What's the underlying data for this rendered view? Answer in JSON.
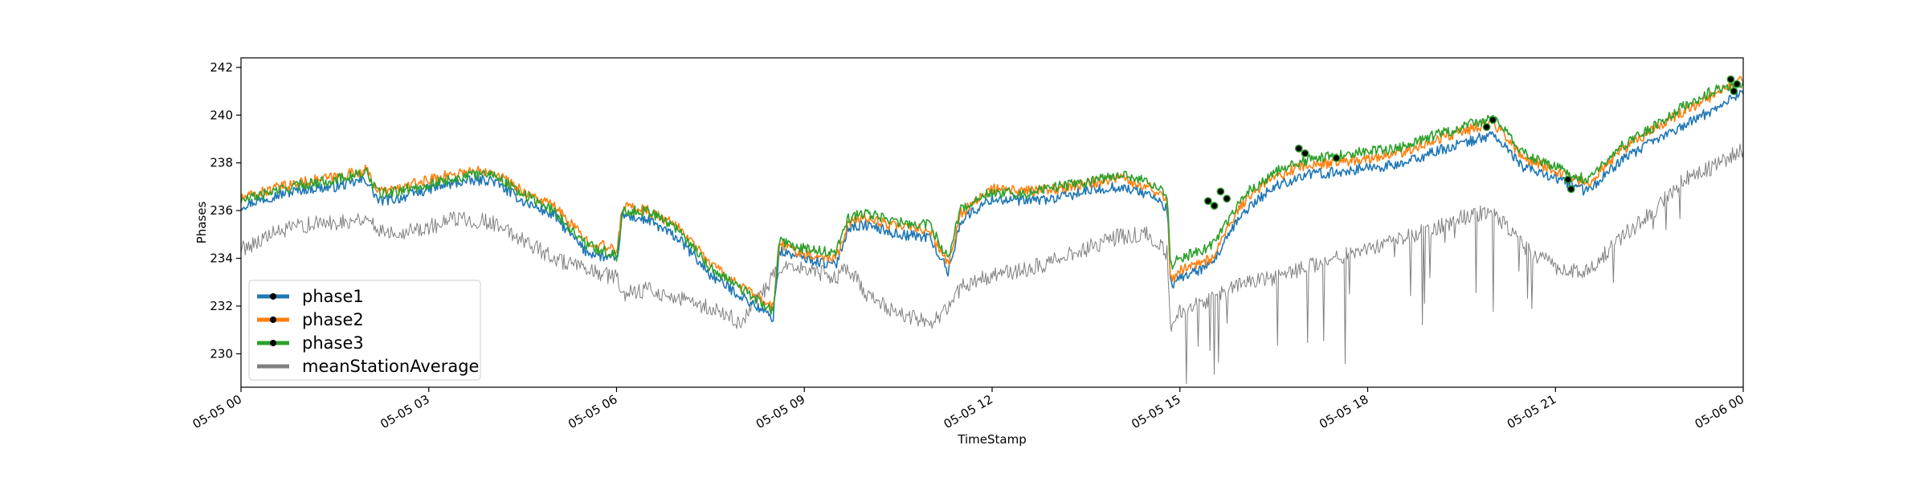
{
  "chart_data": {
    "type": "line",
    "title": "",
    "xlabel": "TimeStamp",
    "ylabel": "Phases",
    "xlim": [
      0,
      24
    ],
    "ylim": [
      228.6,
      242.4
    ],
    "x_ticks": [
      {
        "hour": 0,
        "label": "05-05 00"
      },
      {
        "hour": 3,
        "label": "05-05 03"
      },
      {
        "hour": 6,
        "label": "05-05 06"
      },
      {
        "hour": 9,
        "label": "05-05 09"
      },
      {
        "hour": 12,
        "label": "05-05 12"
      },
      {
        "hour": 15,
        "label": "05-05 15"
      },
      {
        "hour": 18,
        "label": "05-05 18"
      },
      {
        "hour": 21,
        "label": "05-05 21"
      },
      {
        "hour": 24,
        "label": "05-06 00"
      }
    ],
    "y_ticks": [
      {
        "value": 230,
        "label": "230"
      },
      {
        "value": 232,
        "label": "232"
      },
      {
        "value": 234,
        "label": "234"
      },
      {
        "value": 236,
        "label": "236"
      },
      {
        "value": 238,
        "label": "238"
      },
      {
        "value": 240,
        "label": "240"
      },
      {
        "value": 242,
        "label": "242"
      }
    ],
    "grid": false,
    "legend_position": "bottom-left",
    "x_unit": "hours since 05-05 00:00",
    "series": [
      {
        "name": "phase1",
        "color": "#1f77b4",
        "x": [
          0,
          0.5,
          1,
          1.5,
          2,
          2.2,
          2.5,
          3,
          3.5,
          4,
          4.5,
          5,
          5.5,
          6,
          6.1,
          6.5,
          7,
          7.5,
          8,
          8.5,
          8.6,
          9,
          9.5,
          9.7,
          10,
          10.5,
          11,
          11.3,
          11.5,
          12,
          12.5,
          13,
          13.5,
          14,
          14.5,
          14.8,
          14.85,
          15,
          15.5,
          16,
          16.5,
          17,
          17.5,
          18,
          18.5,
          19,
          19.5,
          20,
          20.5,
          21,
          21.5,
          22,
          22.5,
          23,
          23.5,
          24
        ],
        "y": [
          236.2,
          236.6,
          236.9,
          237.0,
          237.3,
          236.4,
          236.5,
          236.9,
          237.2,
          237.3,
          236.4,
          235.8,
          234.3,
          233.9,
          235.8,
          235.6,
          234.8,
          233.3,
          232.4,
          231.5,
          234.3,
          234.0,
          233.7,
          235.3,
          235.4,
          235.0,
          234.9,
          233.4,
          235.6,
          236.5,
          236.4,
          236.5,
          236.8,
          237.0,
          236.7,
          236.1,
          232.8,
          233.2,
          233.7,
          235.9,
          237.0,
          237.5,
          237.6,
          237.8,
          237.9,
          238.4,
          238.8,
          239.2,
          237.8,
          237.4,
          236.8,
          238.0,
          238.8,
          239.5,
          240.2,
          241.0
        ]
      },
      {
        "name": "phase2",
        "color": "#ff7f0e",
        "x": [
          0,
          0.5,
          1,
          1.5,
          2,
          2.2,
          2.5,
          3,
          3.5,
          4,
          4.5,
          5,
          5.5,
          6,
          6.1,
          6.5,
          7,
          7.5,
          8,
          8.5,
          8.6,
          9,
          9.5,
          9.7,
          10,
          10.5,
          11,
          11.3,
          11.5,
          12,
          12.5,
          13,
          13.5,
          14,
          14.5,
          14.8,
          14.85,
          15,
          15.5,
          16,
          16.5,
          17,
          17.5,
          18,
          18.5,
          19,
          19.5,
          20,
          20.5,
          21,
          21.5,
          22,
          22.5,
          23,
          23.5,
          24
        ],
        "y": [
          236.5,
          236.9,
          237.2,
          237.4,
          237.7,
          236.8,
          236.9,
          237.3,
          237.6,
          237.7,
          236.8,
          236.2,
          234.8,
          234.3,
          236.2,
          236.0,
          235.3,
          233.8,
          232.8,
          231.9,
          234.6,
          234.2,
          234.0,
          235.5,
          235.7,
          235.3,
          235.2,
          233.7,
          235.9,
          236.9,
          236.8,
          236.9,
          237.1,
          237.4,
          237.0,
          236.5,
          233.1,
          233.5,
          234.0,
          236.3,
          237.4,
          237.9,
          238.0,
          238.2,
          238.4,
          238.9,
          239.3,
          239.7,
          238.2,
          237.7,
          237.1,
          238.4,
          239.3,
          240.1,
          240.8,
          241.5
        ]
      },
      {
        "name": "phase3",
        "color": "#2ca02c",
        "x": [
          0,
          0.5,
          1,
          1.5,
          2,
          2.2,
          2.5,
          3,
          3.5,
          4,
          4.5,
          5,
          5.5,
          6,
          6.1,
          6.5,
          7,
          7.5,
          8,
          8.5,
          8.6,
          9,
          9.5,
          9.7,
          10,
          10.5,
          11,
          11.3,
          11.5,
          12,
          12.5,
          13,
          13.5,
          14,
          14.5,
          14.8,
          14.85,
          15,
          15.5,
          16,
          16.5,
          17,
          17.5,
          18,
          18.5,
          19,
          19.5,
          20,
          20.5,
          21,
          21.5,
          22,
          22.5,
          23,
          23.5,
          24
        ],
        "y": [
          236.4,
          236.8,
          237.1,
          237.3,
          237.6,
          236.7,
          236.8,
          237.1,
          237.4,
          237.6,
          236.7,
          236.0,
          234.6,
          234.1,
          236.0,
          236.0,
          235.2,
          233.6,
          232.7,
          231.8,
          234.7,
          234.4,
          234.2,
          235.7,
          235.9,
          235.5,
          235.4,
          234.0,
          236.1,
          236.8,
          236.7,
          237.0,
          237.2,
          237.5,
          237.2,
          236.7,
          233.7,
          234.0,
          234.5,
          236.6,
          237.6,
          238.1,
          238.3,
          238.5,
          238.6,
          239.1,
          239.5,
          239.9,
          238.4,
          237.8,
          237.3,
          238.6,
          239.4,
          240.3,
          241.0,
          241.4
        ]
      },
      {
        "name": "meanStationAverage",
        "color": "#808080",
        "x": [
          0,
          0.5,
          1,
          1.5,
          2,
          2.2,
          2.5,
          3,
          3.5,
          4,
          4.5,
          5,
          5.5,
          6,
          6.1,
          6.5,
          7,
          7.5,
          8,
          8.5,
          8.6,
          9,
          9.5,
          9.7,
          10,
          10.5,
          11,
          11.3,
          11.5,
          12,
          12.5,
          13,
          13.5,
          14,
          14.5,
          14.8,
          14.85,
          15,
          15.5,
          16,
          16.5,
          17,
          17.5,
          18,
          18.5,
          19,
          19.5,
          20,
          20.5,
          21,
          21.5,
          22,
          22.5,
          23,
          23.5,
          24
        ],
        "y": [
          234.4,
          235.0,
          235.4,
          235.5,
          235.7,
          235.2,
          235.1,
          235.3,
          235.7,
          235.5,
          234.8,
          234.0,
          233.5,
          233.2,
          232.5,
          232.7,
          232.3,
          231.9,
          231.3,
          233.2,
          233.5,
          233.6,
          233.2,
          233.6,
          232.5,
          231.7,
          231.3,
          231.9,
          232.8,
          233.3,
          233.5,
          233.9,
          234.4,
          234.9,
          235.0,
          234.2,
          230.8,
          231.8,
          232.3,
          233.0,
          233.2,
          233.6,
          234.0,
          234.4,
          234.8,
          235.2,
          235.7,
          236.0,
          234.5,
          233.6,
          233.4,
          234.8,
          235.8,
          237.2,
          237.8,
          238.6
        ]
      }
    ],
    "anomaly_markers": {
      "marker_color": "#000000",
      "x": [
        15.45,
        15.55,
        15.65,
        15.75,
        16.9,
        17.0,
        17.5,
        19.9,
        20.0,
        21.2,
        21.25,
        23.8,
        23.85,
        23.9
      ],
      "y": [
        236.4,
        236.2,
        236.8,
        236.5,
        238.6,
        238.4,
        238.2,
        239.5,
        239.8,
        237.3,
        236.9,
        241.5,
        241.0,
        241.3
      ]
    }
  }
}
